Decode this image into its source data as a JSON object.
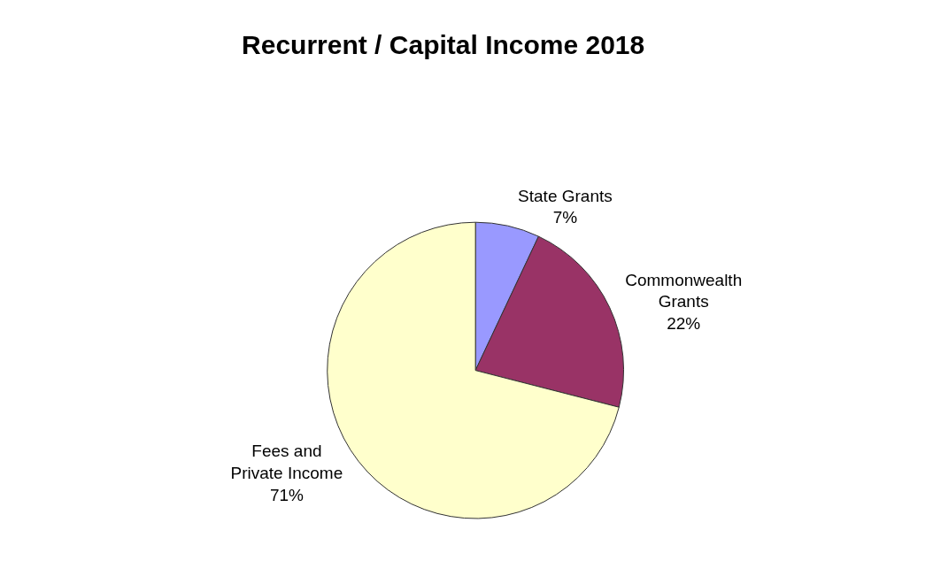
{
  "chart_data": {
    "type": "pie",
    "title": "Recurrent / Capital Income 2018",
    "categories": [
      "State Grants",
      "Commonwealth Grants",
      "Fees and Private Income"
    ],
    "values": [
      7,
      22,
      71
    ],
    "value_labels": [
      "7%",
      "22%",
      "71%"
    ],
    "colors": [
      "#9999ff",
      "#993366",
      "#ffffcc"
    ],
    "legend": false
  }
}
